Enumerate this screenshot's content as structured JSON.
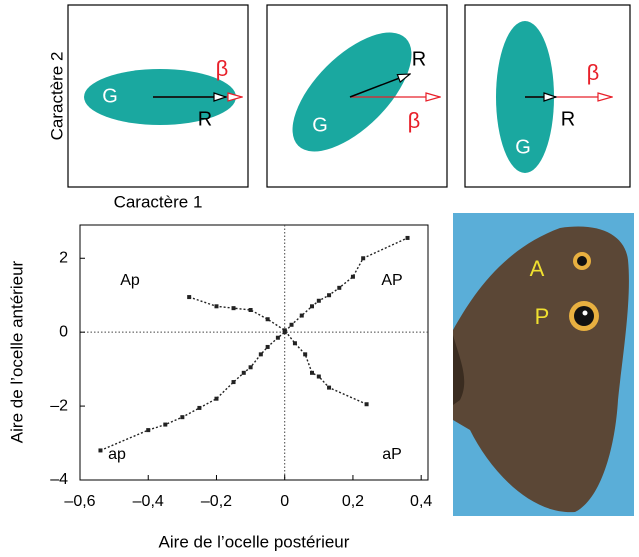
{
  "diagrams": {
    "y_label": "Caractère 2",
    "x_label": "Caractère 1",
    "panels": [
      {
        "g": "G",
        "r": "R",
        "beta": "β"
      },
      {
        "g": "G",
        "r": "R",
        "beta": "β"
      },
      {
        "g": "G",
        "r": "R",
        "beta": "β"
      }
    ]
  },
  "chart_data": {
    "type": "line",
    "x_label": "Aire de l’ocelle postérieur",
    "y_label": "Aire de l’ocelle antérieur",
    "xlim": [
      -0.6,
      0.42
    ],
    "ylim": [
      -4,
      2.9
    ],
    "xticks": [
      {
        "value": -0.6,
        "label": "–0,6"
      },
      {
        "value": -0.4,
        "label": "–0,4"
      },
      {
        "value": -0.2,
        "label": "–0,2"
      },
      0,
      {
        "value": 0.2,
        "label": "0,2"
      },
      {
        "value": 0.4,
        "label": "0,4"
      }
    ],
    "yticks": [
      {
        "value": -4,
        "label": "–4"
      },
      {
        "value": -2,
        "label": "–2"
      },
      0,
      2
    ],
    "annotations": [
      "Ap",
      "AP",
      "ap",
      "aP"
    ],
    "series": [
      {
        "color": "#222",
        "x": [
          -0.54,
          -0.4,
          -0.35,
          -0.3,
          -0.25,
          -0.2,
          -0.15,
          -0.12,
          -0.1,
          -0.07,
          -0.05,
          -0.02,
          0,
          0.02,
          0.05,
          0.08,
          0.1,
          0.13,
          0.16,
          0.2,
          0.23,
          0.36
        ],
        "values": [
          -3.2,
          -2.65,
          -2.5,
          -2.3,
          -2.05,
          -1.8,
          -1.35,
          -1.1,
          -0.95,
          -0.6,
          -0.4,
          -0.15,
          0,
          0.2,
          0.45,
          0.7,
          0.85,
          1.0,
          1.2,
          1.5,
          2.0,
          2.55
        ]
      },
      {
        "color": "#222",
        "x": [
          -0.28,
          -0.2,
          -0.15,
          -0.1,
          -0.05,
          0,
          0.03,
          0.06,
          0.08,
          0.1,
          0.13,
          0.24
        ],
        "values": [
          0.95,
          0.7,
          0.65,
          0.6,
          0.35,
          0.05,
          -0.3,
          -0.6,
          -1.1,
          -1.2,
          -1.5,
          -1.95
        ]
      }
    ]
  },
  "photo": {
    "labels": [
      "A",
      "P"
    ]
  }
}
